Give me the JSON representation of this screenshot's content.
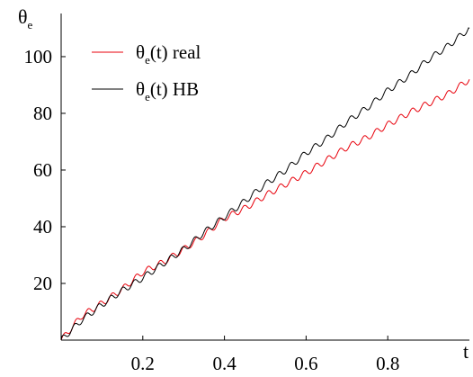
{
  "chart_data": {
    "type": "line",
    "xlabel": "t",
    "ylabel": "θ",
    "ylabel_sub": "e",
    "xlim": [
      0,
      1.0
    ],
    "ylim": [
      0,
      113
    ],
    "x_ticks": [
      0.2,
      0.4,
      0.6,
      0.8
    ],
    "x_tick_labels": [
      "0.2",
      "0.4",
      "0.6",
      "0.8"
    ],
    "y_ticks": [
      20,
      40,
      60,
      80,
      100
    ],
    "y_tick_labels": [
      "20",
      "40",
      "60",
      "80",
      "100"
    ],
    "grid": false,
    "legend_position": "top-left",
    "series": [
      {
        "name": "θe(t) real",
        "legend_prefix": "θ",
        "legend_sub": "e",
        "legend_suffix": "(t) real",
        "color": "#e8000b",
        "x": [
          0,
          0.05,
          0.1,
          0.15,
          0.2,
          0.25,
          0.3,
          0.35,
          0.4,
          0.45,
          0.5,
          0.55,
          0.6,
          0.65,
          0.7,
          0.75,
          0.8,
          0.85,
          0.9,
          0.95,
          1.0
        ],
        "values": [
          0,
          8.5,
          13,
          18,
          24,
          27.5,
          32,
          37,
          43,
          46.5,
          51,
          55,
          59,
          63.5,
          68,
          71.5,
          76,
          80,
          83.5,
          87,
          92
        ]
      },
      {
        "name": "θe(t) HB",
        "legend_prefix": "θ",
        "legend_sub": "e",
        "legend_suffix": "(t) HB",
        "color": "#000000",
        "x": [
          0,
          0.05,
          0.1,
          0.15,
          0.2,
          0.25,
          0.3,
          0.35,
          0.4,
          0.45,
          0.5,
          0.55,
          0.6,
          0.65,
          0.7,
          0.75,
          0.8,
          0.85,
          0.9,
          0.95,
          1.0
        ],
        "values": [
          0,
          7,
          12.5,
          17.5,
          22,
          27,
          32,
          38,
          43.5,
          49,
          55,
          60,
          66,
          71,
          77,
          82,
          88,
          93,
          99,
          104,
          110
        ]
      }
    ],
    "oscillation_amplitude": 1.1,
    "oscillation_cycles": 34
  }
}
